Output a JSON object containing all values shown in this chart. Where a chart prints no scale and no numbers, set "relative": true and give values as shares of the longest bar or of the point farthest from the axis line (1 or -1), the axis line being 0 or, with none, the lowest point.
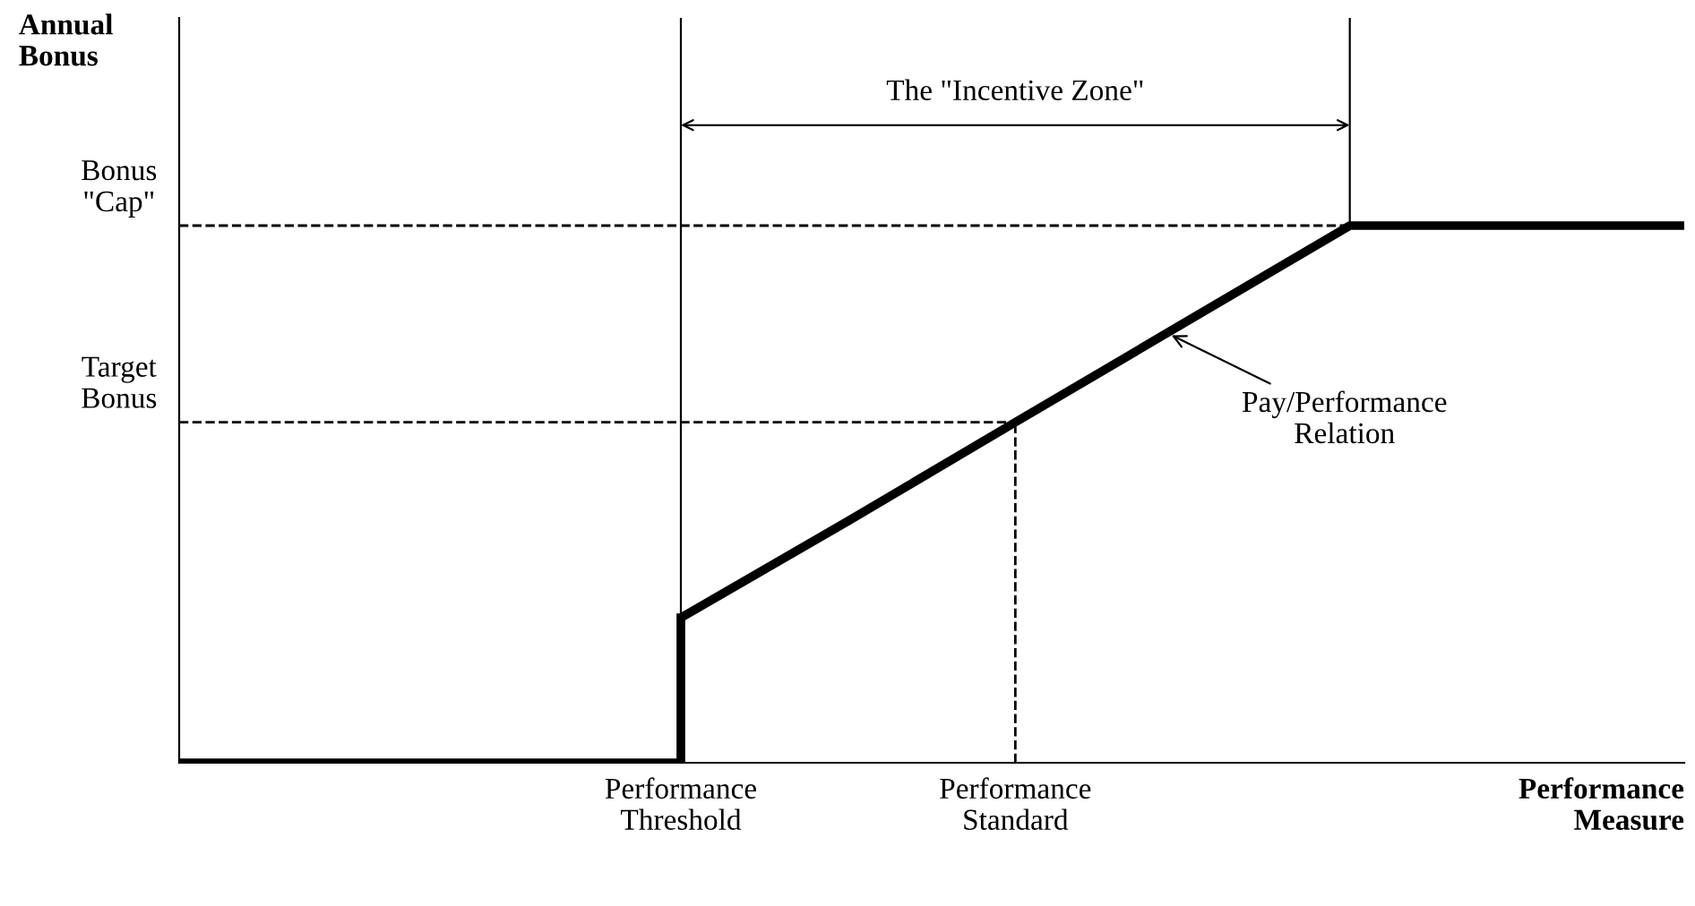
{
  "chart_data": {
    "type": "line",
    "relative": true,
    "xlabel": "Performance\nMeasure",
    "categories": [
      null,
      null,
      null,
      "Performance\nThreshold",
      null,
      "Performance\nStandard",
      null,
      null,
      null,
      null
    ],
    "series": [
      {
        "type": "step",
        "color": "#000000",
        "values": [
          0,
          0,
          0,
          0.27,
          null,
          null,
          null,
          null,
          null,
          null
        ]
      },
      {
        "color": "#000000",
        "values": [
          null,
          null,
          null,
          0.27,
          0.45,
          0.634,
          0.817,
          1,
          1,
          1
        ]
      }
    ],
    "ref_lines": [
      {
        "axis": "y",
        "value": 1,
        "label": "Bonus\n\"Cap\"",
        "line_style": "dashed"
      },
      {
        "axis": "y",
        "value": 0.634,
        "label": "Target\nBonus",
        "line_style": "dashed"
      },
      {
        "axis": "x",
        "value": "Performance\nStandard",
        "label": null,
        "line_style": "dashed"
      }
    ],
    "annotations": [
      "The \"Incentive Zone\"",
      "Pay/Performance\nRelation",
      "Annual\nBonus"
    ]
  }
}
